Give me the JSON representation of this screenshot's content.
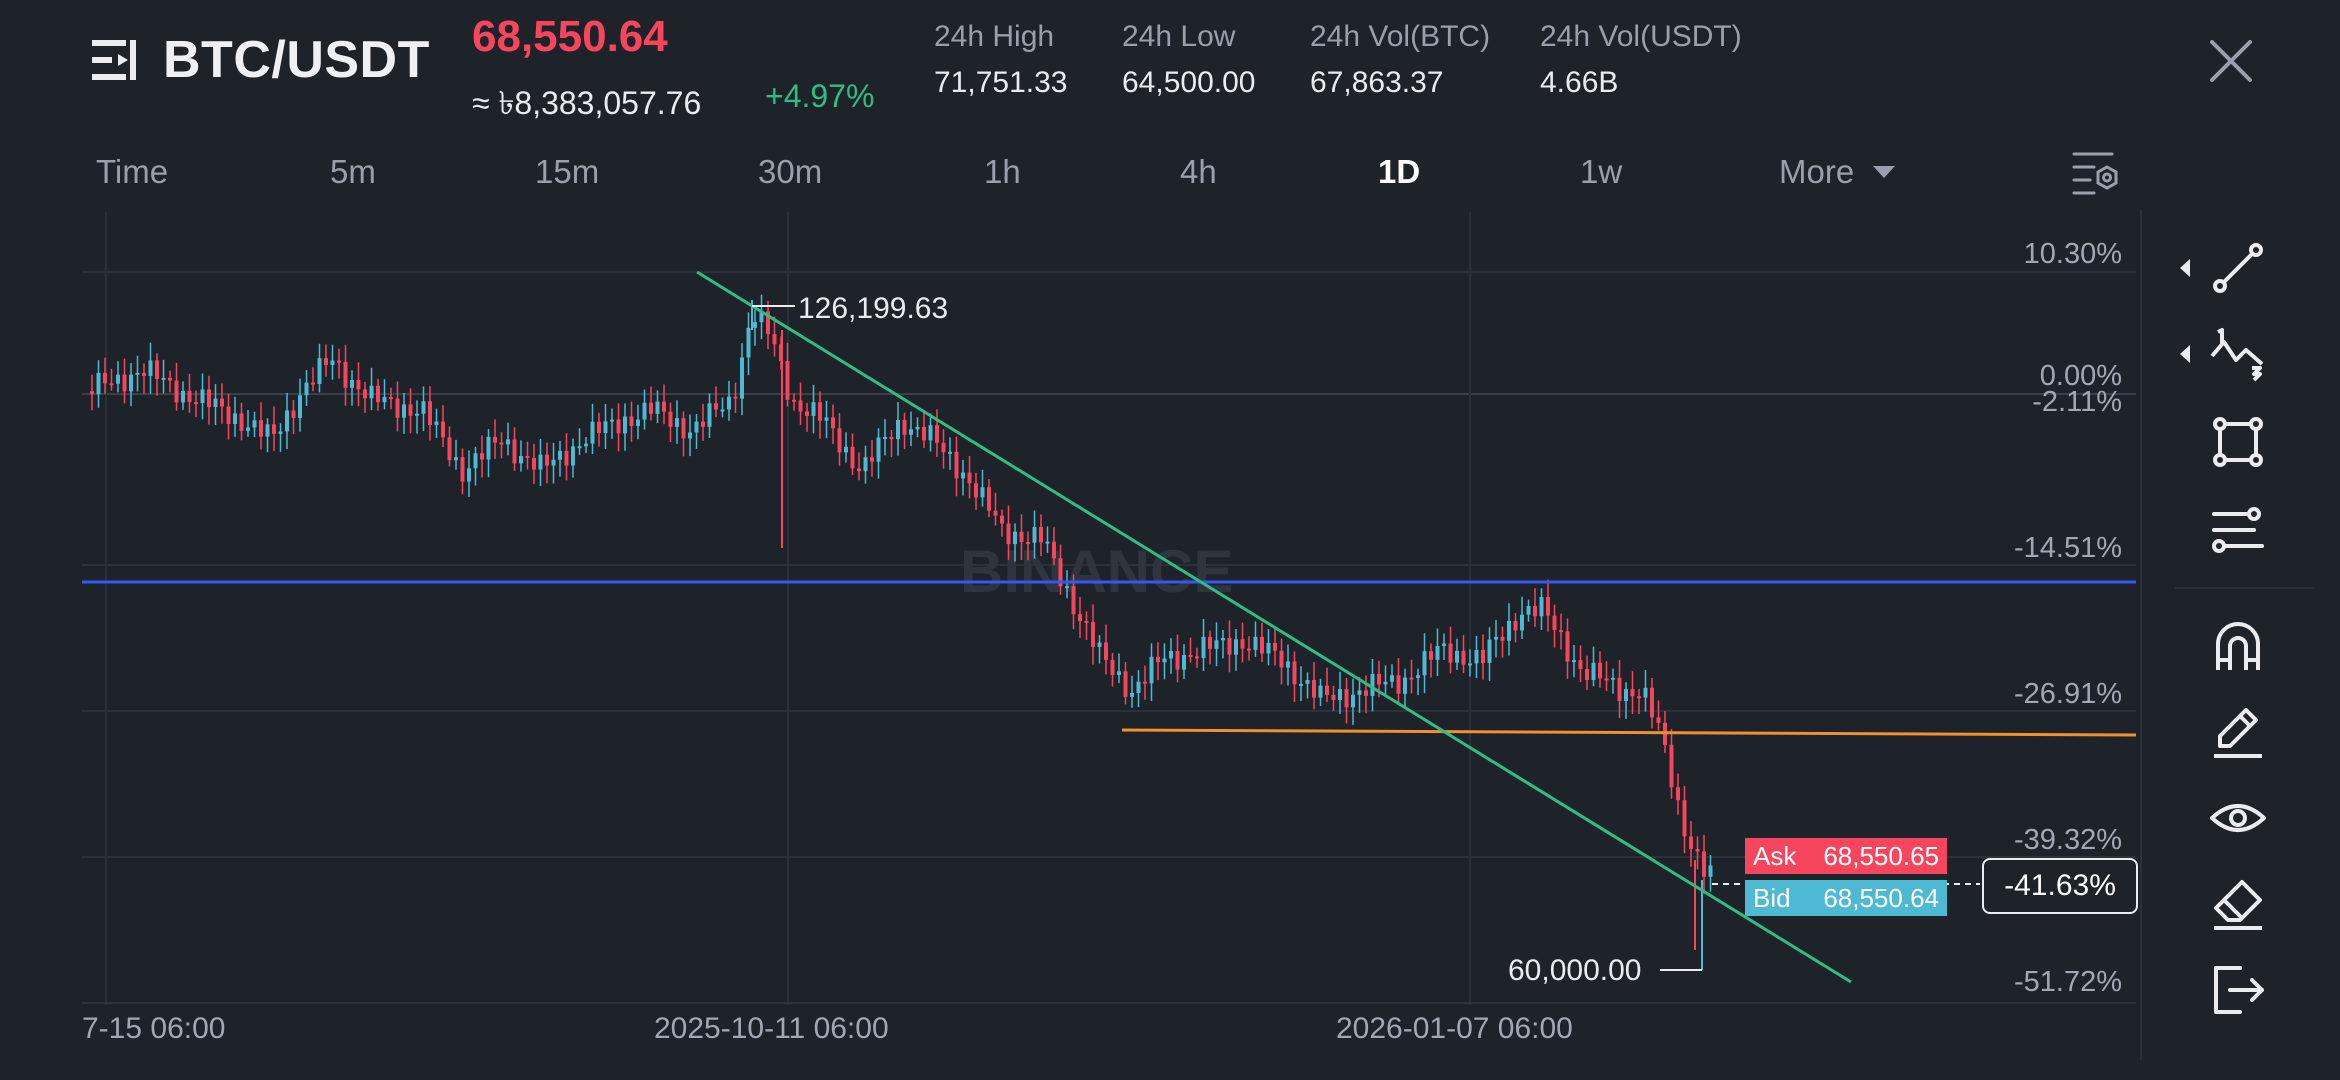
{
  "header": {
    "pair": "BTC/USDT",
    "last_price": "68,550.64",
    "fiat_price": "≈ ৳8,383,057.76",
    "change": "+4.97%",
    "stats": [
      {
        "label": "24h High",
        "value": "71,751.33"
      },
      {
        "label": "24h Low",
        "value": "64,500.00"
      },
      {
        "label": "24h Vol(BTC)",
        "value": "67,863.37"
      },
      {
        "label": "24h Vol(USDT)",
        "value": "4.66B"
      }
    ]
  },
  "intervals": [
    "Time",
    "5m",
    "15m",
    "30m",
    "1h",
    "4h",
    "1D",
    "1w",
    "More"
  ],
  "active_interval": "1D",
  "chart": {
    "watermark": "BINANCE",
    "pct_labels": [
      "10.30%",
      "0.00%",
      "-2.11%",
      "-14.51%",
      "-26.91%",
      "-39.32%",
      "-51.72%"
    ],
    "x_labels": [
      "7-15 06:00",
      "2025-10-11 06:00",
      "2026-01-07 06:00"
    ],
    "high_marker": "126,199.63",
    "low_marker": "60,000.00",
    "ask": {
      "label": "Ask",
      "value": "68,550.65"
    },
    "bid": {
      "label": "Bid",
      "value": "68,550.64"
    },
    "current_pct": "-41.63%",
    "colors": {
      "up": "#4eb9d2",
      "down": "#f6465d",
      "trendline": "#2ebd85",
      "support": "#f0902e",
      "horizontal": "#3358f6",
      "grid": "#2b3139"
    }
  },
  "toolbar": [
    "trend-line-icon",
    "fibonacci-icon",
    "shapes-icon",
    "indicators-icon",
    "magnet-icon",
    "brush-icon",
    "visibility-icon",
    "eraser-icon",
    "exit-icon"
  ]
}
